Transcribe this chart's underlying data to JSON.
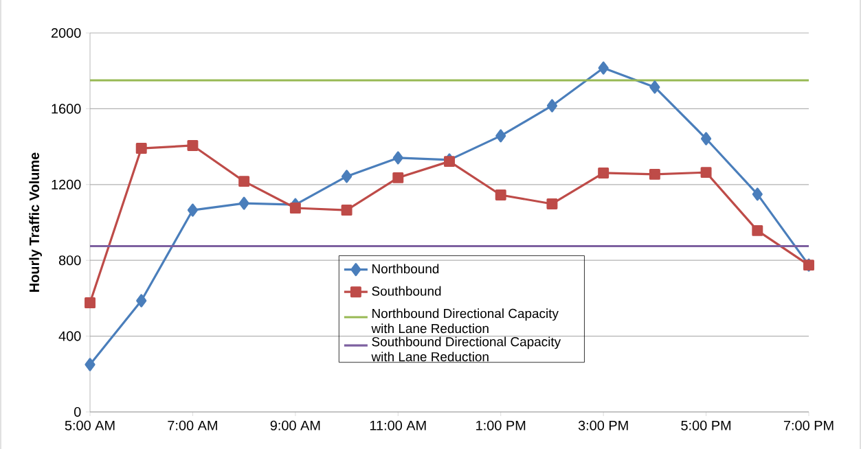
{
  "chart_data": {
    "type": "line",
    "ylabel": "**Hourly Traffic Volume**",
    "x": [
      5,
      6,
      7,
      8,
      9,
      10,
      11,
      12,
      13,
      14,
      15,
      16,
      17,
      18,
      19
    ],
    "xlim": [
      5,
      19
    ],
    "xticks": [
      {
        "value": 5,
        "label": "5:00 AM"
      },
      {
        "value": 7,
        "label": "7:00 AM"
      },
      {
        "value": 9,
        "label": "9:00 AM"
      },
      {
        "value": 11,
        "label": "11:00 AM"
      },
      {
        "value": 13,
        "label": "1:00 PM"
      },
      {
        "value": 15,
        "label": "3:00 PM"
      },
      {
        "value": 17,
        "label": "5:00 PM"
      },
      {
        "value": 19,
        "label": "7:00 PM"
      }
    ],
    "ylim": [
      0,
      2000
    ],
    "yticks": [
      0,
      400,
      800,
      1200,
      1600,
      2000
    ],
    "series": [
      {
        "name": "Northbound",
        "color": "#4a7ebb",
        "marker": "diamond",
        "values": [
          250,
          587,
          1065,
          1101,
          1094,
          1243,
          1341,
          1330,
          1457,
          1616,
          1815,
          1714,
          1442,
          1149,
          775
        ]
      },
      {
        "name": "Southbound",
        "color": "#be4b48",
        "marker": "square",
        "values": [
          576,
          1391,
          1406,
          1217,
          1076,
          1065,
          1236,
          1322,
          1145,
          1098,
          1261,
          1254,
          1264,
          957,
          775
        ]
      }
    ],
    "ref_lines": [
      {
        "axis": "y",
        "value": 1750,
        "label": "Northbound Directional Capacity with Lane Reduction",
        "color": "#98b954"
      },
      {
        "axis": "y",
        "value": 875,
        "label": "Southbound Directional Capacity with Lane Reduction",
        "color": "#7d60a0"
      }
    ],
    "grid": "y",
    "legend": "bottom"
  }
}
